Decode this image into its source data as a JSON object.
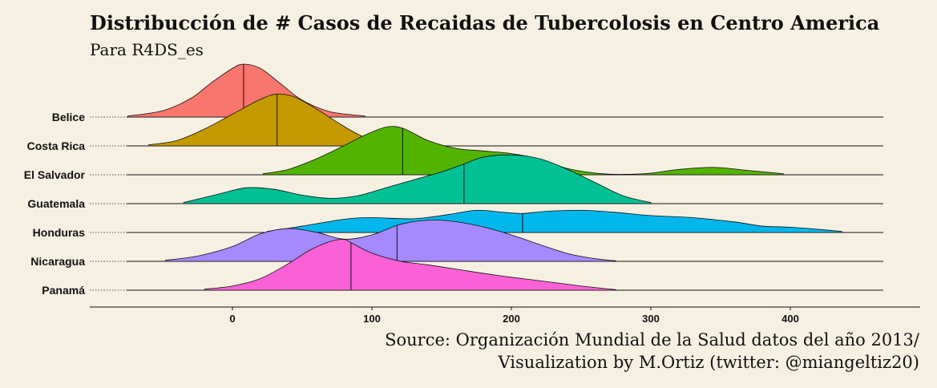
{
  "title": "Distribucción de # Casos de Recaidas de Tubercolosis en Centro America",
  "subtitle": "Para R4DS_es",
  "caption_line1": "Source: Organización Mundial de la Salud datos del año 2013/",
  "caption_line2": "Visualization by M.Ortiz (twitter: @miangeltiz20)",
  "chart_data": {
    "type": "area",
    "subtype": "ridgeline density",
    "x_ticks": [
      0,
      100,
      200,
      300,
      400
    ],
    "x_range": [
      -100,
      490
    ],
    "grid": false,
    "legend": "none",
    "series": [
      {
        "name": "Belice",
        "color": "#f8766d",
        "median": 8,
        "x": [
          -75,
          -50,
          -30,
          -15,
          0,
          8,
          20,
          35,
          50,
          70,
          95
        ],
        "y": [
          0.02,
          0.12,
          0.35,
          0.65,
          0.92,
          1.0,
          0.92,
          0.62,
          0.32,
          0.1,
          0.02
        ]
      },
      {
        "name": "Costa Rica",
        "color": "#c49a00",
        "median": 32,
        "x": [
          -60,
          -40,
          -20,
          0,
          20,
          32,
          45,
          60,
          75,
          90,
          105,
          115
        ],
        "y": [
          0.02,
          0.1,
          0.32,
          0.6,
          0.88,
          0.98,
          0.92,
          0.7,
          0.45,
          0.22,
          0.07,
          0.02
        ]
      },
      {
        "name": "El Salvador",
        "color": "#53b400",
        "median": 122,
        "x": [
          22,
          40,
          60,
          80,
          95,
          110,
          122,
          140,
          160,
          180,
          200,
          220,
          240,
          265,
          285,
          300,
          320,
          345,
          370,
          395
        ],
        "y": [
          0.02,
          0.1,
          0.3,
          0.55,
          0.75,
          0.9,
          0.88,
          0.65,
          0.5,
          0.45,
          0.4,
          0.3,
          0.12,
          0.02,
          0.01,
          0.03,
          0.1,
          0.14,
          0.08,
          0.02
        ]
      },
      {
        "name": "Guatemala",
        "color": "#00c094",
        "median": 166,
        "x": [
          -35,
          -10,
          10,
          30,
          50,
          70,
          90,
          110,
          130,
          150,
          166,
          180,
          200,
          220,
          240,
          260,
          280,
          300
        ],
        "y": [
          0.02,
          0.18,
          0.3,
          0.27,
          0.16,
          0.1,
          0.15,
          0.3,
          0.45,
          0.6,
          0.75,
          0.88,
          0.92,
          0.85,
          0.65,
          0.4,
          0.15,
          0.02
        ]
      },
      {
        "name": "Honduras",
        "color": "#00b6eb",
        "median": 208,
        "x": [
          25,
          50,
          80,
          100,
          130,
          155,
          175,
          195,
          208,
          225,
          250,
          275,
          300,
          330,
          360,
          380,
          400,
          420,
          437
        ],
        "y": [
          0.02,
          0.12,
          0.25,
          0.28,
          0.26,
          0.34,
          0.42,
          0.38,
          0.36,
          0.4,
          0.42,
          0.38,
          0.32,
          0.28,
          0.2,
          0.12,
          0.1,
          0.06,
          0.02
        ]
      },
      {
        "name": "Nicaragua",
        "color": "#a58aff",
        "median": 118,
        "x": [
          -48,
          -25,
          0,
          20,
          40,
          60,
          80,
          100,
          118,
          130,
          145,
          160,
          180,
          200,
          220,
          240,
          260,
          275
        ],
        "y": [
          0.02,
          0.1,
          0.28,
          0.52,
          0.62,
          0.55,
          0.42,
          0.5,
          0.68,
          0.75,
          0.78,
          0.75,
          0.65,
          0.5,
          0.32,
          0.15,
          0.05,
          0.01
        ]
      },
      {
        "name": "Panamá",
        "color": "#fb61d7",
        "median": 85,
        "x": [
          -20,
          0,
          20,
          40,
          55,
          70,
          80,
          85,
          100,
          120,
          140,
          160,
          190,
          220,
          250,
          275
        ],
        "y": [
          0.02,
          0.08,
          0.22,
          0.5,
          0.75,
          0.92,
          0.96,
          0.9,
          0.7,
          0.55,
          0.48,
          0.4,
          0.28,
          0.18,
          0.08,
          0.01
        ]
      }
    ]
  }
}
